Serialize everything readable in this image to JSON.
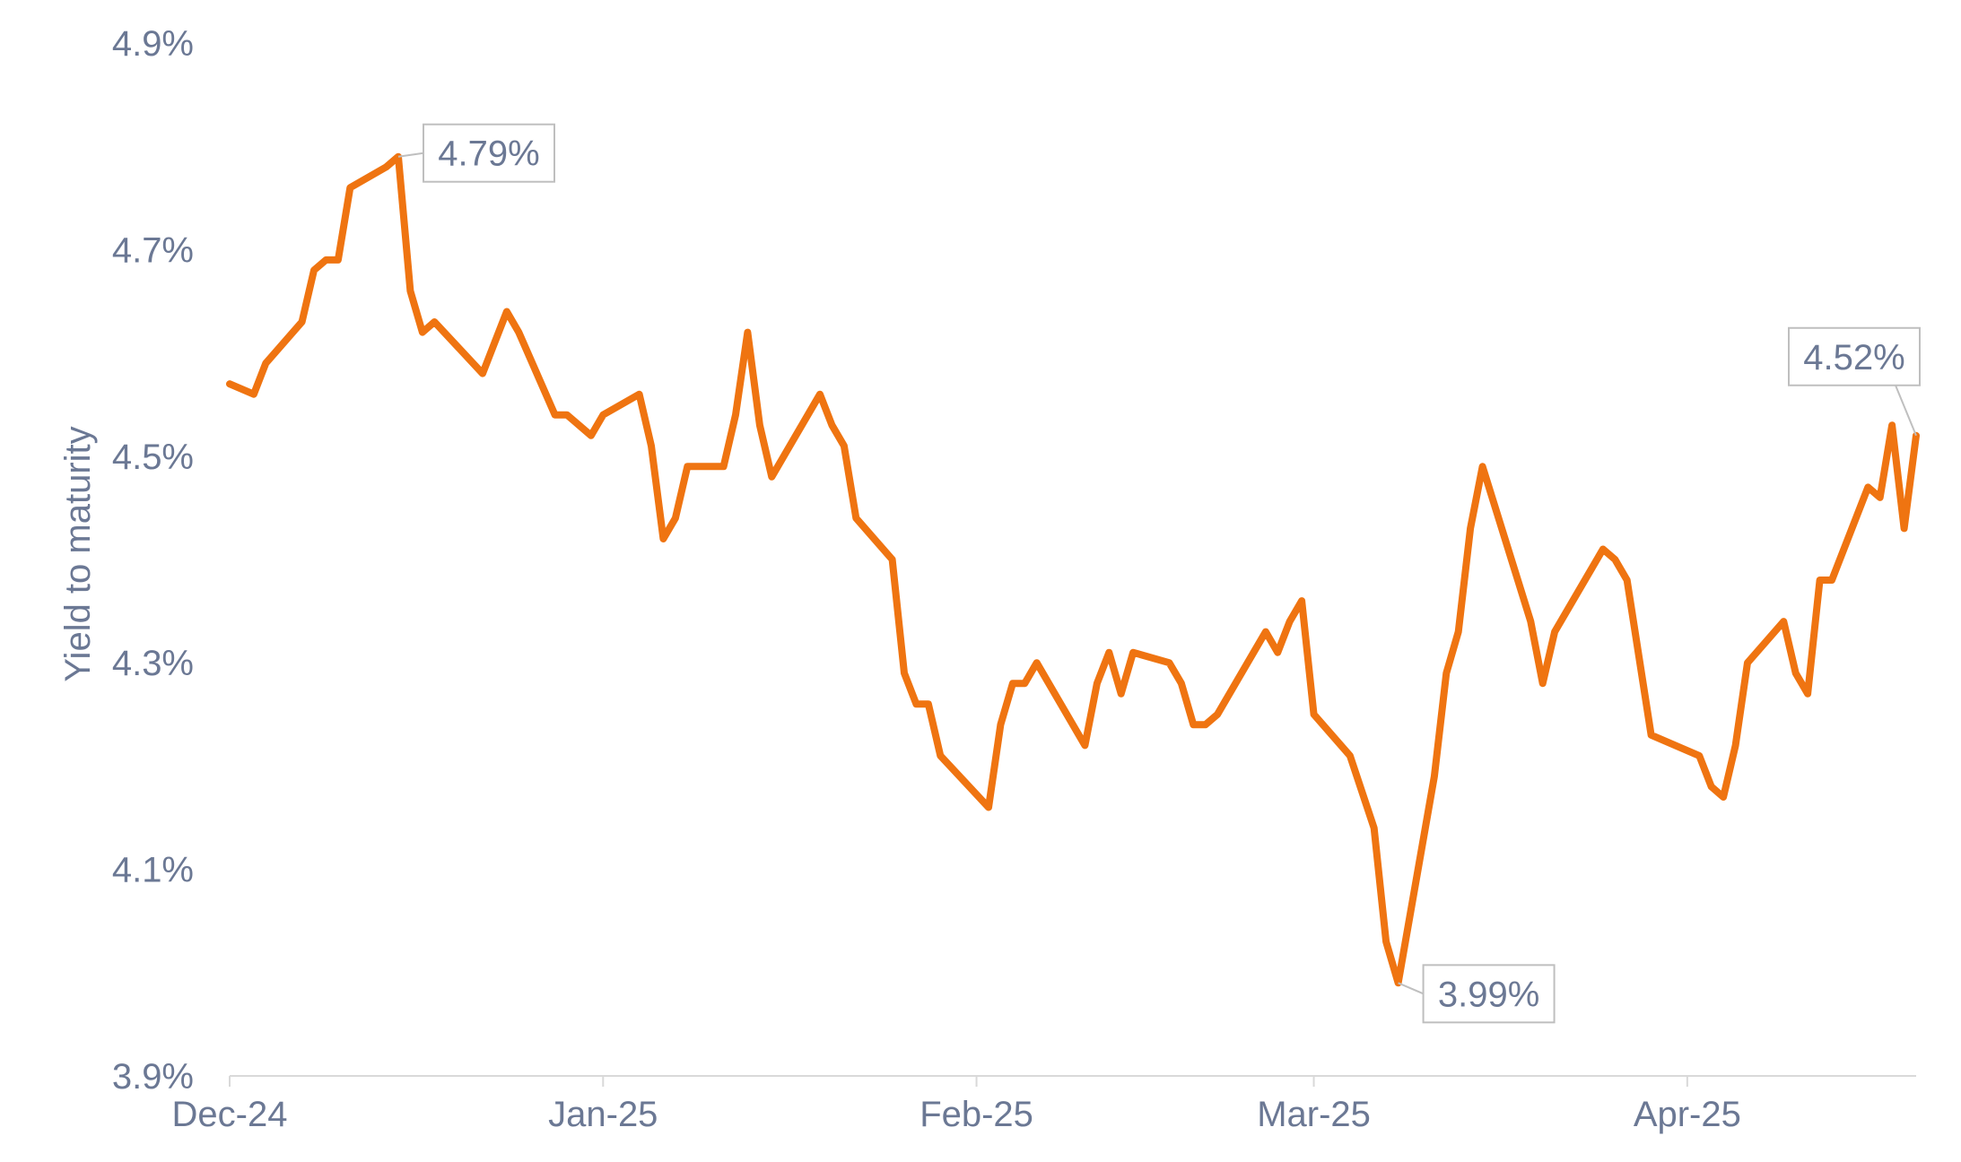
{
  "chart_data": {
    "type": "line",
    "title": "",
    "xlabel": "",
    "ylabel": "Yield to maturity",
    "ylim": [
      3.9,
      4.9
    ],
    "yticks": [
      "3.9%",
      "4.1%",
      "4.3%",
      "4.5%",
      "4.7%",
      "4.9%"
    ],
    "ytick_values": [
      3.9,
      4.1,
      4.3,
      4.5,
      4.7,
      4.9
    ],
    "xlim": [
      "2024-12-01",
      "2025-04-20"
    ],
    "xticks": [
      {
        "label": "Dec-24",
        "date": "2024-12-01"
      },
      {
        "label": "Jan-25",
        "date": "2025-01-01"
      },
      {
        "label": "Feb-25",
        "date": "2025-02-01"
      },
      {
        "label": "Mar-25",
        "date": "2025-03-01"
      },
      {
        "label": "Apr-25",
        "date": "2025-04-01"
      }
    ],
    "grid": false,
    "series": [
      {
        "color": "#ef7411",
        "points": [
          [
            "2024-12-01",
            4.57
          ],
          [
            "2024-12-03",
            4.56
          ],
          [
            "2024-12-04",
            4.59
          ],
          [
            "2024-12-07",
            4.63
          ],
          [
            "2024-12-08",
            4.68
          ],
          [
            "2024-12-09",
            4.69
          ],
          [
            "2024-12-10",
            4.69
          ],
          [
            "2024-12-11",
            4.76
          ],
          [
            "2024-12-14",
            4.78
          ],
          [
            "2024-12-15",
            4.79
          ],
          [
            "2024-12-16",
            4.66
          ],
          [
            "2024-12-17",
            4.62
          ],
          [
            "2024-12-18",
            4.63
          ],
          [
            "2024-12-22",
            4.58
          ],
          [
            "2024-12-23",
            4.61
          ],
          [
            "2024-12-24",
            4.64
          ],
          [
            "2024-12-25",
            4.62
          ],
          [
            "2024-12-28",
            4.54
          ],
          [
            "2024-12-29",
            4.54
          ],
          [
            "2024-12-30",
            4.53
          ],
          [
            "2024-12-31",
            4.52
          ],
          [
            "2025-01-01",
            4.54
          ],
          [
            "2025-01-04",
            4.56
          ],
          [
            "2025-01-05",
            4.51
          ],
          [
            "2025-01-06",
            4.42
          ],
          [
            "2025-01-07",
            4.44
          ],
          [
            "2025-01-08",
            4.49
          ],
          [
            "2025-01-11",
            4.49
          ],
          [
            "2025-01-12",
            4.54
          ],
          [
            "2025-01-13",
            4.62
          ],
          [
            "2025-01-14",
            4.53
          ],
          [
            "2025-01-15",
            4.48
          ],
          [
            "2025-01-19",
            4.56
          ],
          [
            "2025-01-20",
            4.53
          ],
          [
            "2025-01-21",
            4.51
          ],
          [
            "2025-01-22",
            4.44
          ],
          [
            "2025-01-25",
            4.4
          ],
          [
            "2025-01-26",
            4.29
          ],
          [
            "2025-01-27",
            4.26
          ],
          [
            "2025-01-28",
            4.26
          ],
          [
            "2025-01-29",
            4.21
          ],
          [
            "2025-02-02",
            4.16
          ],
          [
            "2025-02-03",
            4.24
          ],
          [
            "2025-02-04",
            4.28
          ],
          [
            "2025-02-05",
            4.28
          ],
          [
            "2025-02-06",
            4.3
          ],
          [
            "2025-02-10",
            4.22
          ],
          [
            "2025-02-11",
            4.28
          ],
          [
            "2025-02-12",
            4.31
          ],
          [
            "2025-02-13",
            4.27
          ],
          [
            "2025-02-14",
            4.31
          ],
          [
            "2025-02-17",
            4.3
          ],
          [
            "2025-02-18",
            4.28
          ],
          [
            "2025-02-19",
            4.24
          ],
          [
            "2025-02-20",
            4.24
          ],
          [
            "2025-02-21",
            4.25
          ],
          [
            "2025-02-25",
            4.33
          ],
          [
            "2025-02-26",
            4.31
          ],
          [
            "2025-02-27",
            4.34
          ],
          [
            "2025-02-28",
            4.36
          ],
          [
            "2025-03-01",
            4.25
          ],
          [
            "2025-03-04",
            4.21
          ],
          [
            "2025-03-06",
            4.14
          ],
          [
            "2025-03-07",
            4.03
          ],
          [
            "2025-03-08",
            3.99
          ],
          [
            "2025-03-11",
            4.19
          ],
          [
            "2025-03-12",
            4.29
          ],
          [
            "2025-03-13",
            4.33
          ],
          [
            "2025-03-14",
            4.43
          ],
          [
            "2025-03-15",
            4.49
          ],
          [
            "2025-03-19",
            4.34
          ],
          [
            "2025-03-20",
            4.28
          ],
          [
            "2025-03-21",
            4.33
          ],
          [
            "2025-03-25",
            4.41
          ],
          [
            "2025-03-26",
            4.4
          ],
          [
            "2025-03-27",
            4.38
          ],
          [
            "2025-03-29",
            4.23
          ],
          [
            "2025-04-02",
            4.21
          ],
          [
            "2025-04-03",
            4.18
          ],
          [
            "2025-04-04",
            4.17
          ],
          [
            "2025-04-05",
            4.22
          ],
          [
            "2025-04-06",
            4.3
          ],
          [
            "2025-04-09",
            4.34
          ],
          [
            "2025-04-10",
            4.29
          ],
          [
            "2025-04-11",
            4.27
          ],
          [
            "2025-04-12",
            4.38
          ],
          [
            "2025-04-13",
            4.38
          ],
          [
            "2025-04-16",
            4.47
          ],
          [
            "2025-04-17",
            4.46
          ],
          [
            "2025-04-18",
            4.53
          ],
          [
            "2025-04-19",
            4.43
          ],
          [
            "2025-04-20",
            4.52
          ]
        ]
      }
    ],
    "annotations": [
      {
        "label": "4.79%",
        "date": "2024-12-15",
        "value": 4.79
      },
      {
        "label": "3.99%",
        "date": "2025-03-08",
        "value": 3.99
      },
      {
        "label": "4.52%",
        "date": "2025-04-20",
        "value": 4.52
      }
    ]
  }
}
